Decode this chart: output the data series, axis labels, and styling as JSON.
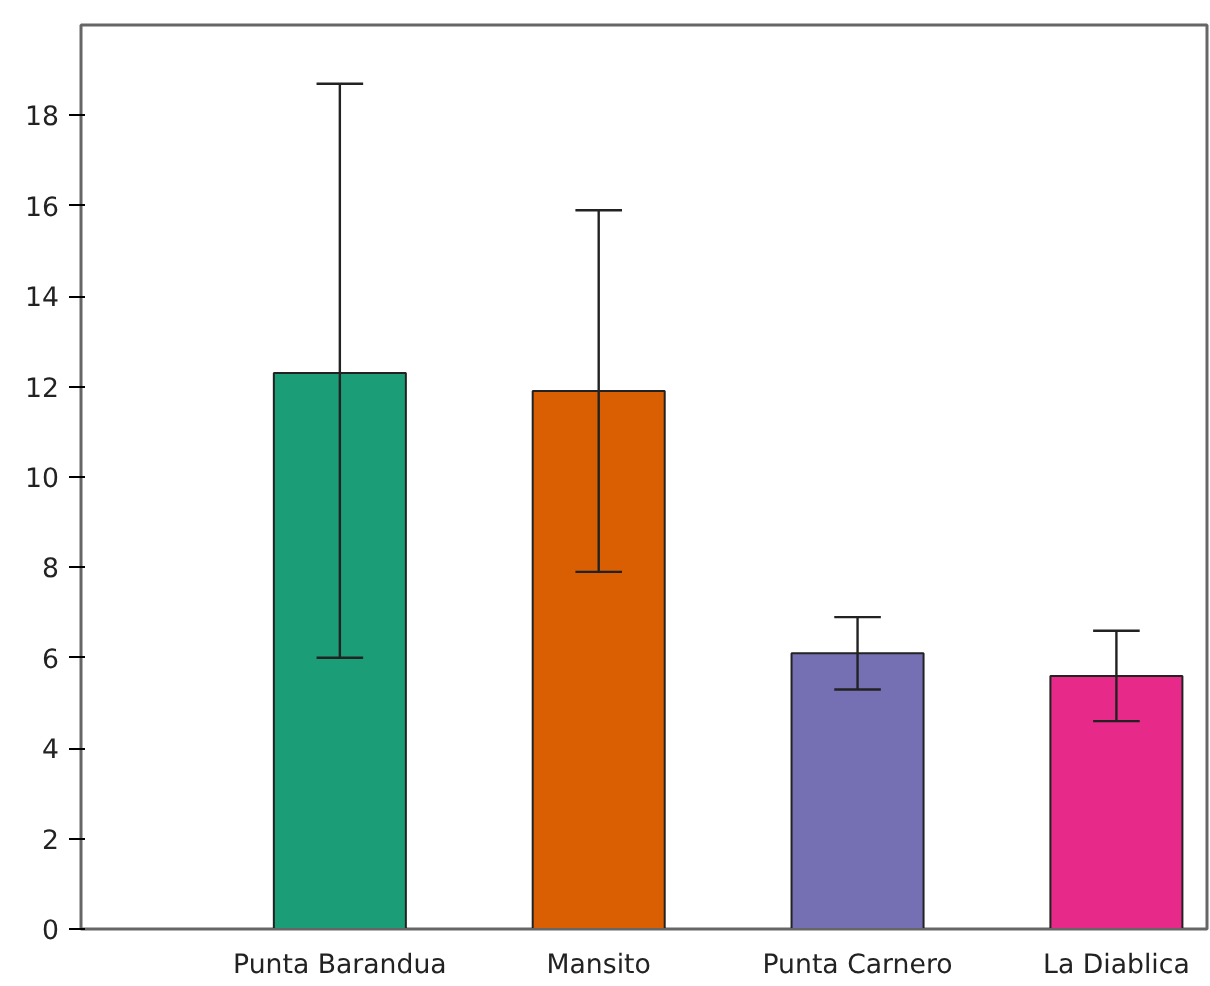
{
  "chart_data": {
    "type": "bar",
    "categories": [
      "Punta Barandua",
      "Mansito",
      "Punta Carnero",
      "La Diablica"
    ],
    "values": [
      12.3,
      11.9,
      6.1,
      5.6
    ],
    "colors": [
      "#1b9e77",
      "#d95f02",
      "#7570b3",
      "#e7298a"
    ],
    "errors": [
      [
        6.0,
        18.7
      ],
      [
        7.9,
        15.9
      ],
      [
        5.3,
        6.9
      ],
      [
        4.6,
        6.6
      ]
    ],
    "ylim": [
      0,
      20
    ],
    "yticks": [
      0,
      2,
      4,
      6,
      8,
      10,
      12,
      14,
      16,
      18
    ],
    "grid": false
  }
}
